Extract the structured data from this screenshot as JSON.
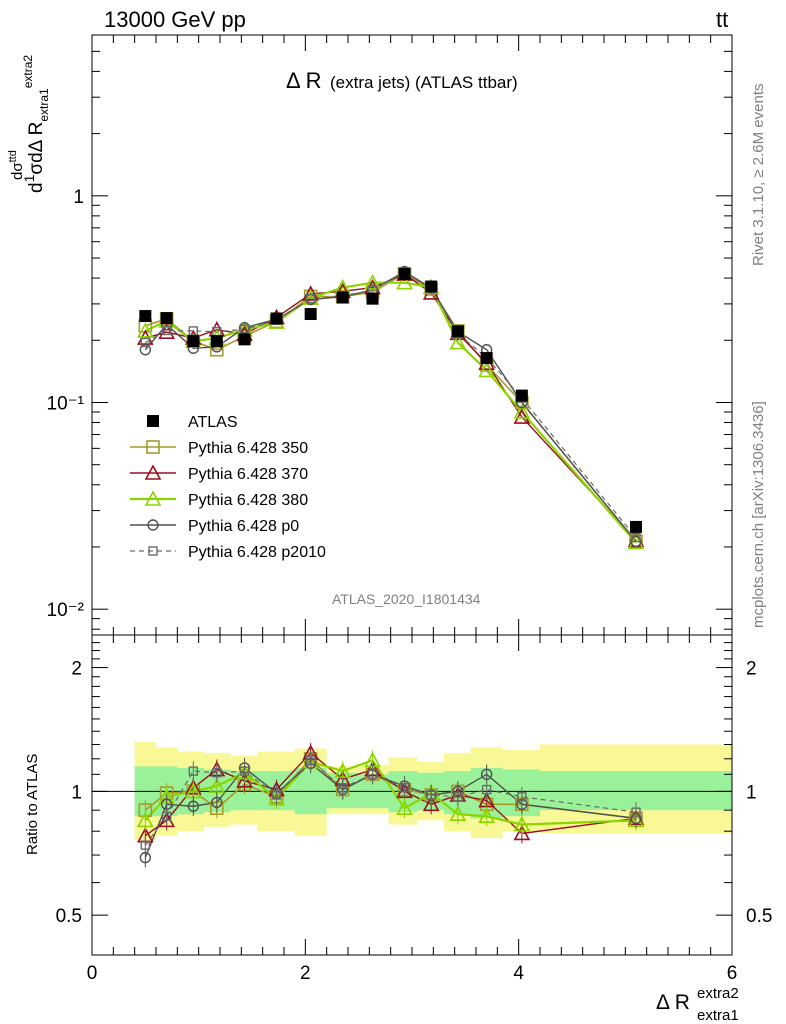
{
  "header": {
    "left": "13000 GeV pp",
    "right": "t̅t̅"
  },
  "panel": {
    "title_main": "Δ R",
    "title_rest": "(extra jets) (ATLAS ttbar)",
    "analysis_id": "ATLAS_2020_I1801434",
    "side_text_1": "Rivet 3.1.10, ≥ 2.6M events",
    "side_text_2": "mcplots.cern.ch [arXiv:1306.3436]"
  },
  "colors": {
    "atlas": "#000000",
    "p350": "#a69a2a",
    "p370": "#9a1020",
    "p380": "#8ad400",
    "p0": "#505050",
    "p2010": "#6a6a6a",
    "band_inner": "#99f299",
    "band_outer": "#f8f897"
  },
  "chart_data": [
    {
      "type": "line",
      "title": "Δ R (extra jets) (ATLAS ttbar)",
      "ylabel": "1/σ dσ/dΔR",
      "xlim": [
        0,
        6
      ],
      "ylim": [
        0.0075,
        6.0
      ],
      "yscale": "log",
      "y_ticks": [
        "10⁻²",
        "10⁻¹",
        "1"
      ],
      "x": [
        0.5,
        0.7,
        0.95,
        1.17,
        1.43,
        1.73,
        2.05,
        2.35,
        2.63,
        2.93,
        3.18,
        3.43,
        3.7,
        4.03,
        5.1
      ],
      "series": [
        {
          "name": "ATLAS",
          "values": [
            0.262,
            0.256,
            0.198,
            0.198,
            0.202,
            0.255,
            0.268,
            0.322,
            0.318,
            0.418,
            0.364,
            0.221,
            0.164,
            0.108,
            0.025
          ]
        },
        {
          "name": "Pythia 6.428 350",
          "values": [
            0.235,
            0.254,
            0.198,
            0.18,
            0.209,
            0.247,
            0.326,
            0.325,
            0.342,
            0.42,
            0.354,
            0.222,
            0.152,
            0.1,
            0.0213
          ]
        },
        {
          "name": "Pythia 6.428 370",
          "values": [
            0.205,
            0.219,
            0.205,
            0.225,
            0.214,
            0.258,
            0.335,
            0.345,
            0.36,
            0.418,
            0.339,
            0.216,
            0.155,
            0.085,
            0.0215
          ]
        },
        {
          "name": "Pythia 6.428 380",
          "values": [
            0.222,
            0.248,
            0.198,
            0.205,
            0.225,
            0.245,
            0.32,
            0.36,
            0.38,
            0.38,
            0.361,
            0.195,
            0.143,
            0.09,
            0.021
          ]
        },
        {
          "name": "Pythia 6.428 p0",
          "values": [
            0.18,
            0.238,
            0.183,
            0.186,
            0.23,
            0.253,
            0.315,
            0.325,
            0.35,
            0.43,
            0.358,
            0.22,
            0.18,
            0.1,
            0.0213
          ]
        },
        {
          "name": "Pythia 6.428 p2010",
          "values": [
            0.195,
            0.223,
            0.222,
            0.22,
            0.226,
            0.25,
            0.318,
            0.328,
            0.35,
            0.425,
            0.356,
            0.215,
            0.165,
            0.105,
            0.0222
          ]
        }
      ],
      "legend_position": "middle-left"
    },
    {
      "type": "line",
      "ylabel": "Ratio to ATLAS",
      "xlabel": "Δ R extra1 extra2",
      "xlim": [
        0,
        6
      ],
      "ylim": [
        0.4,
        2.4
      ],
      "yscale": "log",
      "y_ticks": [
        "0.5",
        "1",
        "2"
      ],
      "x_ticks": [
        "0",
        "2",
        "4",
        "6"
      ],
      "x": [
        0.5,
        0.7,
        0.95,
        1.17,
        1.43,
        1.73,
        2.05,
        2.35,
        2.63,
        2.93,
        3.18,
        3.43,
        3.7,
        4.03,
        5.1
      ],
      "bin_edges": [
        0.4,
        0.6,
        0.8,
        1.05,
        1.3,
        1.55,
        1.9,
        2.2,
        2.5,
        2.78,
        3.05,
        3.3,
        3.55,
        3.85,
        4.2,
        6.0
      ],
      "band_inner": [
        [
          0.87,
          1.15
        ],
        [
          0.87,
          1.15
        ],
        [
          0.88,
          1.14
        ],
        [
          0.89,
          1.13
        ],
        [
          0.9,
          1.12
        ],
        [
          0.9,
          1.12
        ],
        [
          0.88,
          1.14
        ],
        [
          0.91,
          1.11
        ],
        [
          0.91,
          1.1
        ],
        [
          0.89,
          1.12
        ],
        [
          0.9,
          1.11
        ],
        [
          0.88,
          1.12
        ],
        [
          0.86,
          1.14
        ],
        [
          0.87,
          1.13
        ],
        [
          0.9,
          1.12
        ]
      ],
      "band_outer": [
        [
          0.76,
          1.32
        ],
        [
          0.78,
          1.28
        ],
        [
          0.8,
          1.25
        ],
        [
          0.82,
          1.24
        ],
        [
          0.83,
          1.22
        ],
        [
          0.8,
          1.25
        ],
        [
          0.78,
          1.27
        ],
        [
          0.88,
          1.15
        ],
        [
          0.88,
          1.16
        ],
        [
          0.83,
          1.21
        ],
        [
          0.85,
          1.18
        ],
        [
          0.8,
          1.24
        ],
        [
          0.77,
          1.28
        ],
        [
          0.8,
          1.26
        ],
        [
          0.79,
          1.3
        ]
      ],
      "series": [
        {
          "name": "Pythia 6.428 350",
          "values": [
            0.9,
            0.99,
            1.0,
            0.91,
            1.04,
            0.97,
            1.2,
            1.01,
            1.1,
            1.01,
            0.98,
            1.0,
            0.93,
            0.93,
            0.86
          ]
        },
        {
          "name": "Pythia 6.428 370",
          "values": [
            0.78,
            0.85,
            1.02,
            1.13,
            1.06,
            1.01,
            1.24,
            1.07,
            1.13,
            1.0,
            0.93,
            0.98,
            0.95,
            0.79,
            0.86
          ]
        },
        {
          "name": "Pythia 6.428 380",
          "values": [
            0.85,
            0.97,
            1.0,
            1.03,
            1.11,
            0.96,
            1.18,
            1.12,
            1.19,
            0.91,
            0.99,
            0.88,
            0.87,
            0.83,
            0.85
          ]
        },
        {
          "name": "Pythia 6.428 p0",
          "values": [
            0.69,
            0.93,
            0.92,
            0.94,
            1.14,
            0.99,
            1.17,
            1.01,
            1.1,
            1.03,
            0.98,
            1.0,
            1.1,
            0.93,
            0.86
          ]
        },
        {
          "name": "Pythia 6.428 p2010",
          "values": [
            0.74,
            0.87,
            1.12,
            1.11,
            1.12,
            0.98,
            1.19,
            1.02,
            1.1,
            1.02,
            0.98,
            0.97,
            1.01,
            0.97,
            0.89
          ]
        }
      ]
    }
  ]
}
